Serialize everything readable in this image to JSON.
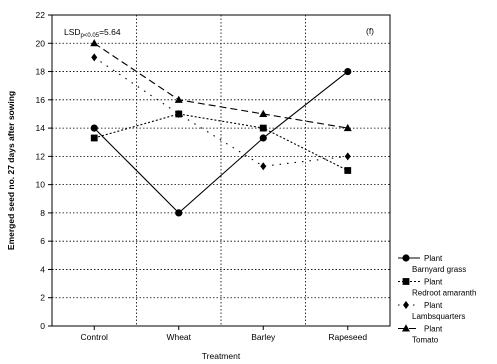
{
  "chart_data": {
    "type": "line",
    "categories": [
      "Control",
      "Wheat",
      "Barley",
      "Rapeseed"
    ],
    "xlabel": "Treatment",
    "ylabel": "Emerged seed no. 27 days after sowing",
    "ylim": [
      0,
      22
    ],
    "yticks": [
      0,
      2,
      4,
      6,
      8,
      10,
      12,
      14,
      16,
      18,
      20,
      22
    ],
    "grid": true,
    "panel_label": "(f)",
    "lsd": {
      "prefix": "LSD",
      "subscript": "p<0.05",
      "value": "=5.64"
    },
    "legend_position": "right",
    "series": [
      {
        "name": "Barnyard grass",
        "legend_lines": [
          "Plant",
          "Barnyard grass"
        ],
        "marker": "circle",
        "dash": "solid",
        "values": [
          14,
          8,
          13.3,
          18
        ]
      },
      {
        "name": "Redroot amaranth",
        "legend_lines": [
          "Plant",
          "Redroot amaranth"
        ],
        "marker": "square",
        "dash": "dot",
        "values": [
          13.3,
          15,
          14,
          11
        ]
      },
      {
        "name": "Lambsquarters",
        "legend_lines": [
          "Plant",
          "Lambsquarters"
        ],
        "marker": "diamond",
        "dash": "sparse",
        "values": [
          19,
          15,
          11.3,
          12
        ]
      },
      {
        "name": "Tomato",
        "legend_lines": [
          "Plant",
          "Tomato"
        ],
        "marker": "triangle",
        "dash": "dash",
        "values": [
          20,
          16,
          15,
          14
        ]
      }
    ]
  }
}
